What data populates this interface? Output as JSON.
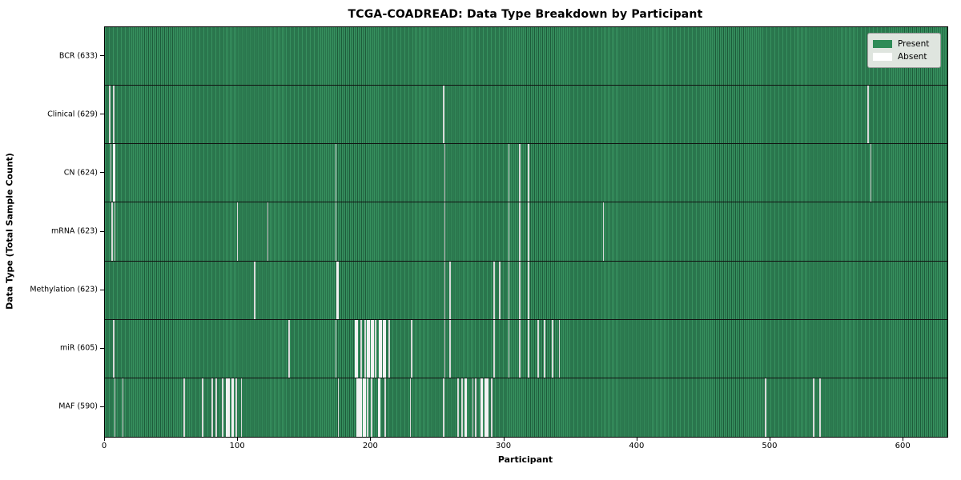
{
  "figure": {
    "title": "TCGA-COADREAD: Data Type Breakdown by Participant",
    "xlabel": "Participant",
    "ylabel": "Data Type (Total Sample Count)"
  },
  "legend": {
    "items": [
      {
        "label": "Present",
        "color": "#2e8b57"
      },
      {
        "label": "Absent",
        "color": "#ffffff"
      }
    ]
  },
  "chart_data": {
    "type": "heatmap",
    "title": "TCGA-COADREAD: Data Type Breakdown by Participant",
    "xlabel": "Participant",
    "ylabel": "Data Type (Total Sample Count)",
    "legend_position": "upper right",
    "grid": false,
    "n_participants": 633,
    "xlim": [
      0,
      633
    ],
    "x_ticks": [
      0,
      100,
      200,
      300,
      400,
      500,
      600
    ],
    "present_color": "#2e8b57",
    "absent_color": "#ffffff",
    "rows": [
      {
        "name": "BCR",
        "total": 633,
        "label": "BCR (633)",
        "absent_ranges": []
      },
      {
        "name": "Clinical",
        "total": 629,
        "label": "Clinical (629)",
        "absent_ranges": [
          [
            3,
            4
          ],
          [
            6,
            7
          ],
          [
            254,
            255
          ],
          [
            573,
            574
          ]
        ]
      },
      {
        "name": "CN",
        "total": 624,
        "label": "CN (624)",
        "absent_ranges": [
          [
            4,
            5
          ],
          [
            6,
            8
          ],
          [
            173,
            174
          ],
          [
            255,
            256
          ],
          [
            303,
            304
          ],
          [
            311,
            312
          ],
          [
            318,
            319
          ],
          [
            575,
            576
          ]
        ]
      },
      {
        "name": "mRNA",
        "total": 623,
        "label": "mRNA (623)",
        "absent_ranges": [
          [
            5,
            6
          ],
          [
            7,
            8
          ],
          [
            99,
            100
          ],
          [
            122,
            123
          ],
          [
            173,
            174
          ],
          [
            255,
            256
          ],
          [
            303,
            304
          ],
          [
            311,
            312
          ],
          [
            318,
            319
          ],
          [
            374,
            375
          ]
        ]
      },
      {
        "name": "Methylation",
        "total": 623,
        "label": "Methylation (623)",
        "absent_ranges": [
          [
            112,
            113
          ],
          [
            174,
            176
          ],
          [
            255,
            256
          ],
          [
            259,
            260
          ],
          [
            292,
            293
          ],
          [
            296,
            297
          ],
          [
            303,
            304
          ],
          [
            311,
            312
          ],
          [
            318,
            319
          ]
        ]
      },
      {
        "name": "miR",
        "total": 605,
        "label": "miR (605)",
        "absent_ranges": [
          [
            6,
            7
          ],
          [
            138,
            139
          ],
          [
            173,
            174
          ],
          [
            188,
            190
          ],
          [
            192,
            193
          ],
          [
            195,
            196
          ],
          [
            197,
            199
          ],
          [
            200,
            202
          ],
          [
            203,
            204
          ],
          [
            206,
            208
          ],
          [
            209,
            211
          ],
          [
            213,
            214
          ],
          [
            230,
            231
          ],
          [
            255,
            256
          ],
          [
            259,
            260
          ],
          [
            292,
            293
          ],
          [
            303,
            304
          ],
          [
            311,
            312
          ],
          [
            318,
            319
          ],
          [
            325,
            326
          ],
          [
            330,
            331
          ],
          [
            336,
            337
          ],
          [
            341,
            342
          ]
        ]
      },
      {
        "name": "MAF",
        "total": 590,
        "label": "MAF (590)",
        "absent_ranges": [
          [
            7,
            8
          ],
          [
            13,
            14
          ],
          [
            59,
            60
          ],
          [
            73,
            74
          ],
          [
            80,
            81
          ],
          [
            83,
            84
          ],
          [
            88,
            89
          ],
          [
            91,
            94
          ],
          [
            95,
            97
          ],
          [
            98,
            99
          ],
          [
            102,
            103
          ],
          [
            175,
            176
          ],
          [
            189,
            193
          ],
          [
            194,
            196
          ],
          [
            197,
            198
          ],
          [
            200,
            201
          ],
          [
            205,
            207
          ],
          [
            210,
            211
          ],
          [
            229,
            230
          ],
          [
            254,
            255
          ],
          [
            265,
            266
          ],
          [
            268,
            269
          ],
          [
            270,
            272
          ],
          [
            276,
            277
          ],
          [
            278,
            279
          ],
          [
            282,
            284
          ],
          [
            285,
            288
          ],
          [
            290,
            291
          ],
          [
            496,
            497
          ],
          [
            532,
            533
          ],
          [
            537,
            538
          ]
        ]
      }
    ]
  }
}
